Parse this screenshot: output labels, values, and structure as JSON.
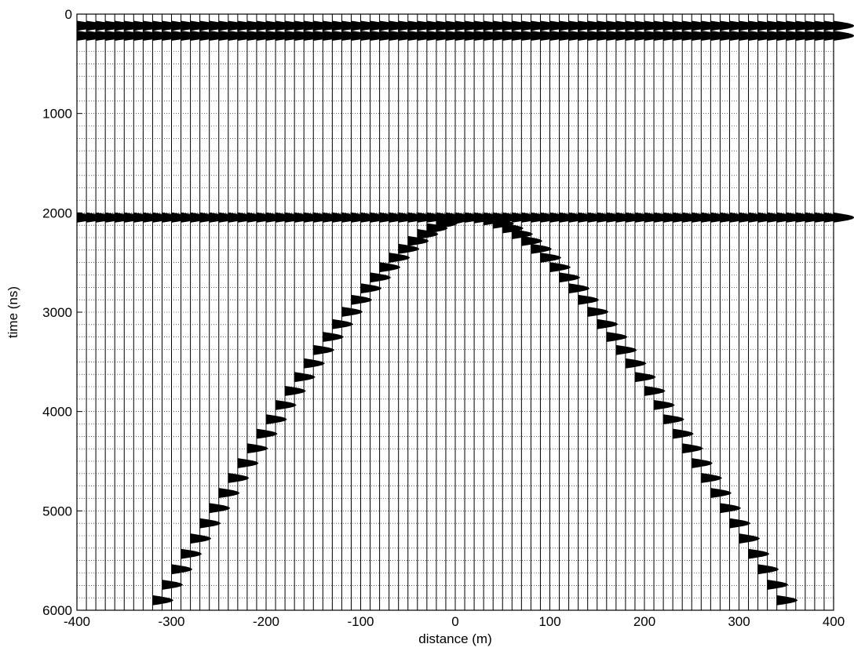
{
  "chart_data": {
    "type": "wiggle-trace seismic / radargram",
    "title": "",
    "xlabel": "distance (m)",
    "ylabel": "time (ns)",
    "xlim": [
      -400,
      400
    ],
    "ylim": [
      0,
      6000
    ],
    "y_reversed": true,
    "grid": true,
    "xticks": [
      -400,
      -300,
      -200,
      -100,
      0,
      100,
      200,
      300,
      400
    ],
    "yticks": [
      0,
      1000,
      2000,
      3000,
      4000,
      5000,
      6000
    ],
    "x_grid_spacing": 10,
    "y_grid_spacing": 125,
    "trace_spacing": 10,
    "fill": "positive",
    "colors": {
      "trace": "#000000",
      "grid": "#000000",
      "background": "#ffffff"
    },
    "series": [
      {
        "events": [
          {
            "kind": "flat",
            "time": 70,
            "x_range": [
              -400,
              400
            ],
            "note": "direct arrival (upper)"
          },
          {
            "kind": "flat",
            "time": 170,
            "x_range": [
              -400,
              400
            ],
            "note": "direct arrival (lower)"
          },
          {
            "kind": "flat",
            "time": 2000,
            "x_range": [
              -400,
              400
            ],
            "note": "flat reflector"
          },
          {
            "kind": "hyperbola",
            "apex_x": 10,
            "apex_time": 2000,
            "velocity_m_per_ns": 0.12,
            "x_range": [
              -320,
              340
            ],
            "note": "diffraction"
          }
        ]
      }
    ]
  }
}
